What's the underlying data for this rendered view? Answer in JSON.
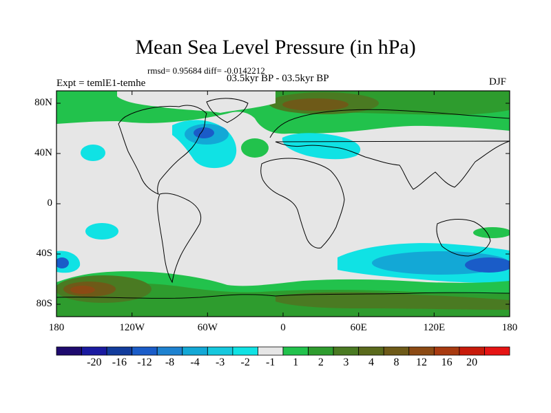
{
  "title": "Mean Sea Level Pressure (in hPa)",
  "stats": "rmsd= 0.95684 diff= -0.0142212",
  "period": "03.5kyr BP - 03.5kyr BP",
  "experiment": "Expt = temlE1-temhe",
  "season": "DJF",
  "y_axis": {
    "labels": [
      "80N",
      "40N",
      "0",
      "40S",
      "80S"
    ]
  },
  "x_axis": {
    "labels": [
      "180",
      "120W",
      "60W",
      "0",
      "60E",
      "120E",
      "180"
    ]
  },
  "colorbar": {
    "colors": [
      "#1e0a6e",
      "#1a1aa0",
      "#123c9c",
      "#1a5cc8",
      "#1e82d0",
      "#13a8d6",
      "#16c8de",
      "#10e2e4",
      "#e6e6e6",
      "#22c24c",
      "#2e9c2e",
      "#4a7a22",
      "#5a6a1c",
      "#6e5a18",
      "#8c4a14",
      "#a83a10",
      "#c81a0a",
      "#e61414"
    ],
    "labels": [
      "-20",
      "-16",
      "-12",
      "-8",
      "-4",
      "-3",
      "-2",
      "-1",
      "1",
      "2",
      "3",
      "4",
      "8",
      "12",
      "16",
      "20"
    ]
  },
  "colors": {
    "neutral": "#e6e6e6",
    "cyan": "#10e2e4",
    "light_blue": "#13a8d6",
    "blue": "#1a5cc8",
    "green": "#22c24c",
    "dark_green": "#2e9c2e",
    "olive": "#4a7a22",
    "brown": "#6e5a18"
  }
}
